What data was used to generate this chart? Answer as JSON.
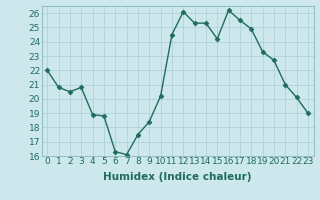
{
  "x": [
    0,
    1,
    2,
    3,
    4,
    5,
    6,
    7,
    8,
    9,
    10,
    11,
    12,
    13,
    14,
    15,
    16,
    17,
    18,
    19,
    20,
    21,
    22,
    23
  ],
  "y": [
    22,
    20.8,
    20.5,
    20.8,
    18.9,
    18.8,
    16.3,
    16.1,
    17.5,
    18.4,
    20.2,
    24.5,
    26.1,
    25.3,
    25.3,
    24.2,
    26.2,
    25.5,
    24.9,
    23.3,
    22.7,
    21.0,
    20.1,
    19.0
  ],
  "line_color": "#1f6b5e",
  "marker": "D",
  "markersize": 2.5,
  "linewidth": 1.0,
  "xlabel": "Humidex (Indice chaleur)",
  "xlim": [
    -0.5,
    23.5
  ],
  "ylim": [
    16,
    26.5
  ],
  "yticks": [
    16,
    17,
    18,
    19,
    20,
    21,
    22,
    23,
    24,
    25,
    26
  ],
  "xticks": [
    0,
    1,
    2,
    3,
    4,
    5,
    6,
    7,
    8,
    9,
    10,
    11,
    12,
    13,
    14,
    15,
    16,
    17,
    18,
    19,
    20,
    21,
    22,
    23
  ],
  "xtick_labels": [
    "0",
    "1",
    "2",
    "3",
    "4",
    "5",
    "6",
    "7",
    "8",
    "9",
    "10",
    "11",
    "12",
    "13",
    "14",
    "15",
    "16",
    "17",
    "18",
    "19",
    "20",
    "21",
    "22",
    "23"
  ],
  "bg_color": "#cce8ec",
  "grid_color": "#aacdd4",
  "axis_label_fontsize": 7.5,
  "tick_fontsize": 6.5
}
